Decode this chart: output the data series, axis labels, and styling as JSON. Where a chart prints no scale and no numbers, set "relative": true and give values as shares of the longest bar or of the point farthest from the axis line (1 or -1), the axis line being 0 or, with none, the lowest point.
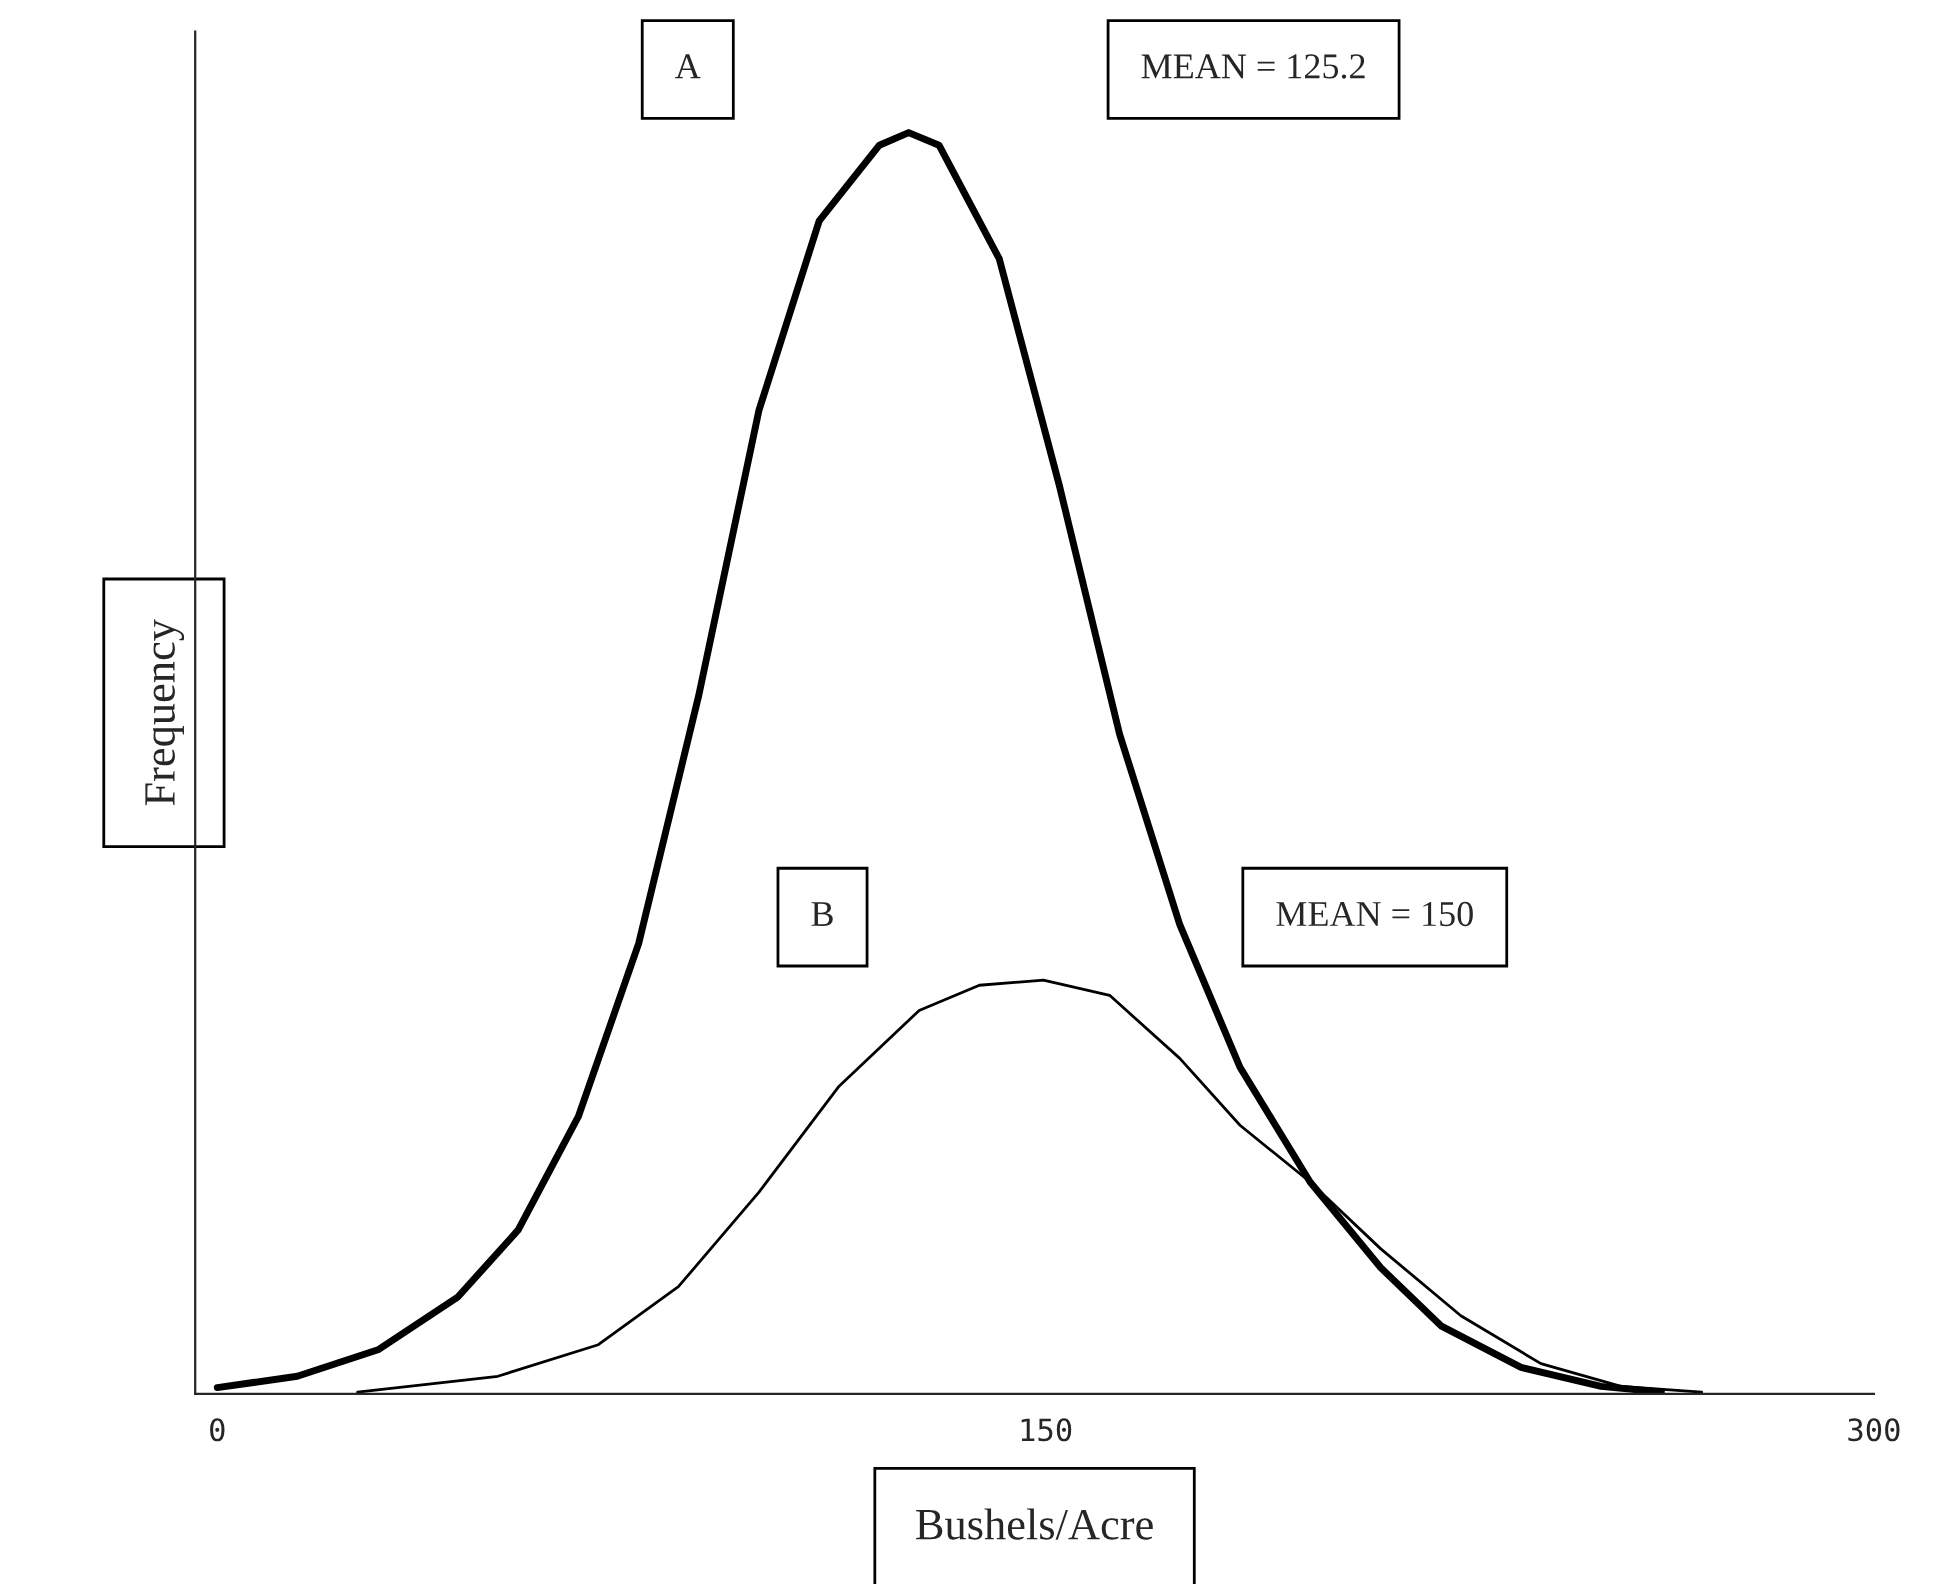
{
  "chart_data": {
    "type": "line",
    "relative": true,
    "xlabel": "Bushels/Acre",
    "ylabel": "Frequency",
    "xlim": [
      -4,
      300
    ],
    "xticks": [
      0,
      150,
      300
    ],
    "grid": false,
    "legend": false,
    "marker": "none",
    "line_style": "solid",
    "annotations": [
      "MEAN = 125.2",
      "MEAN = 150"
    ],
    "series": [
      {
        "name": "A",
        "color": "#000000",
        "x": [
          0,
          14.5,
          29.1,
          43.6,
          54.5,
          65.4,
          76.3,
          87.2,
          98.1,
          109,
          119.9,
          125.2,
          130.7,
          141.6,
          152.5,
          163.4,
          174.3,
          185.2,
          197.9,
          210.7,
          221.6,
          236.1,
          250.6,
          261.5
        ],
        "values": [
          0.005,
          0.014,
          0.035,
          0.077,
          0.13,
          0.22,
          0.357,
          0.554,
          0.78,
          0.93,
          0.99,
          1.0,
          0.99,
          0.9,
          0.72,
          0.523,
          0.372,
          0.259,
          0.168,
          0.1,
          0.054,
          0.021,
          0.006,
          0.0015
        ]
      },
      {
        "name": "B",
        "color": "#000000",
        "x": [
          25.4,
          50.8,
          69,
          83.5,
          98.1,
          112.6,
          127.1,
          138,
          149.6,
          161.6,
          174.3,
          185.2,
          197.9,
          210.7,
          225.2,
          239.7,
          254.2,
          268.8
        ],
        "values": [
          0.0015,
          0.014,
          0.039,
          0.085,
          0.16,
          0.244,
          0.304,
          0.324,
          0.328,
          0.316,
          0.266,
          0.213,
          0.168,
          0.115,
          0.062,
          0.024,
          0.006,
          0.0015
        ]
      }
    ]
  }
}
